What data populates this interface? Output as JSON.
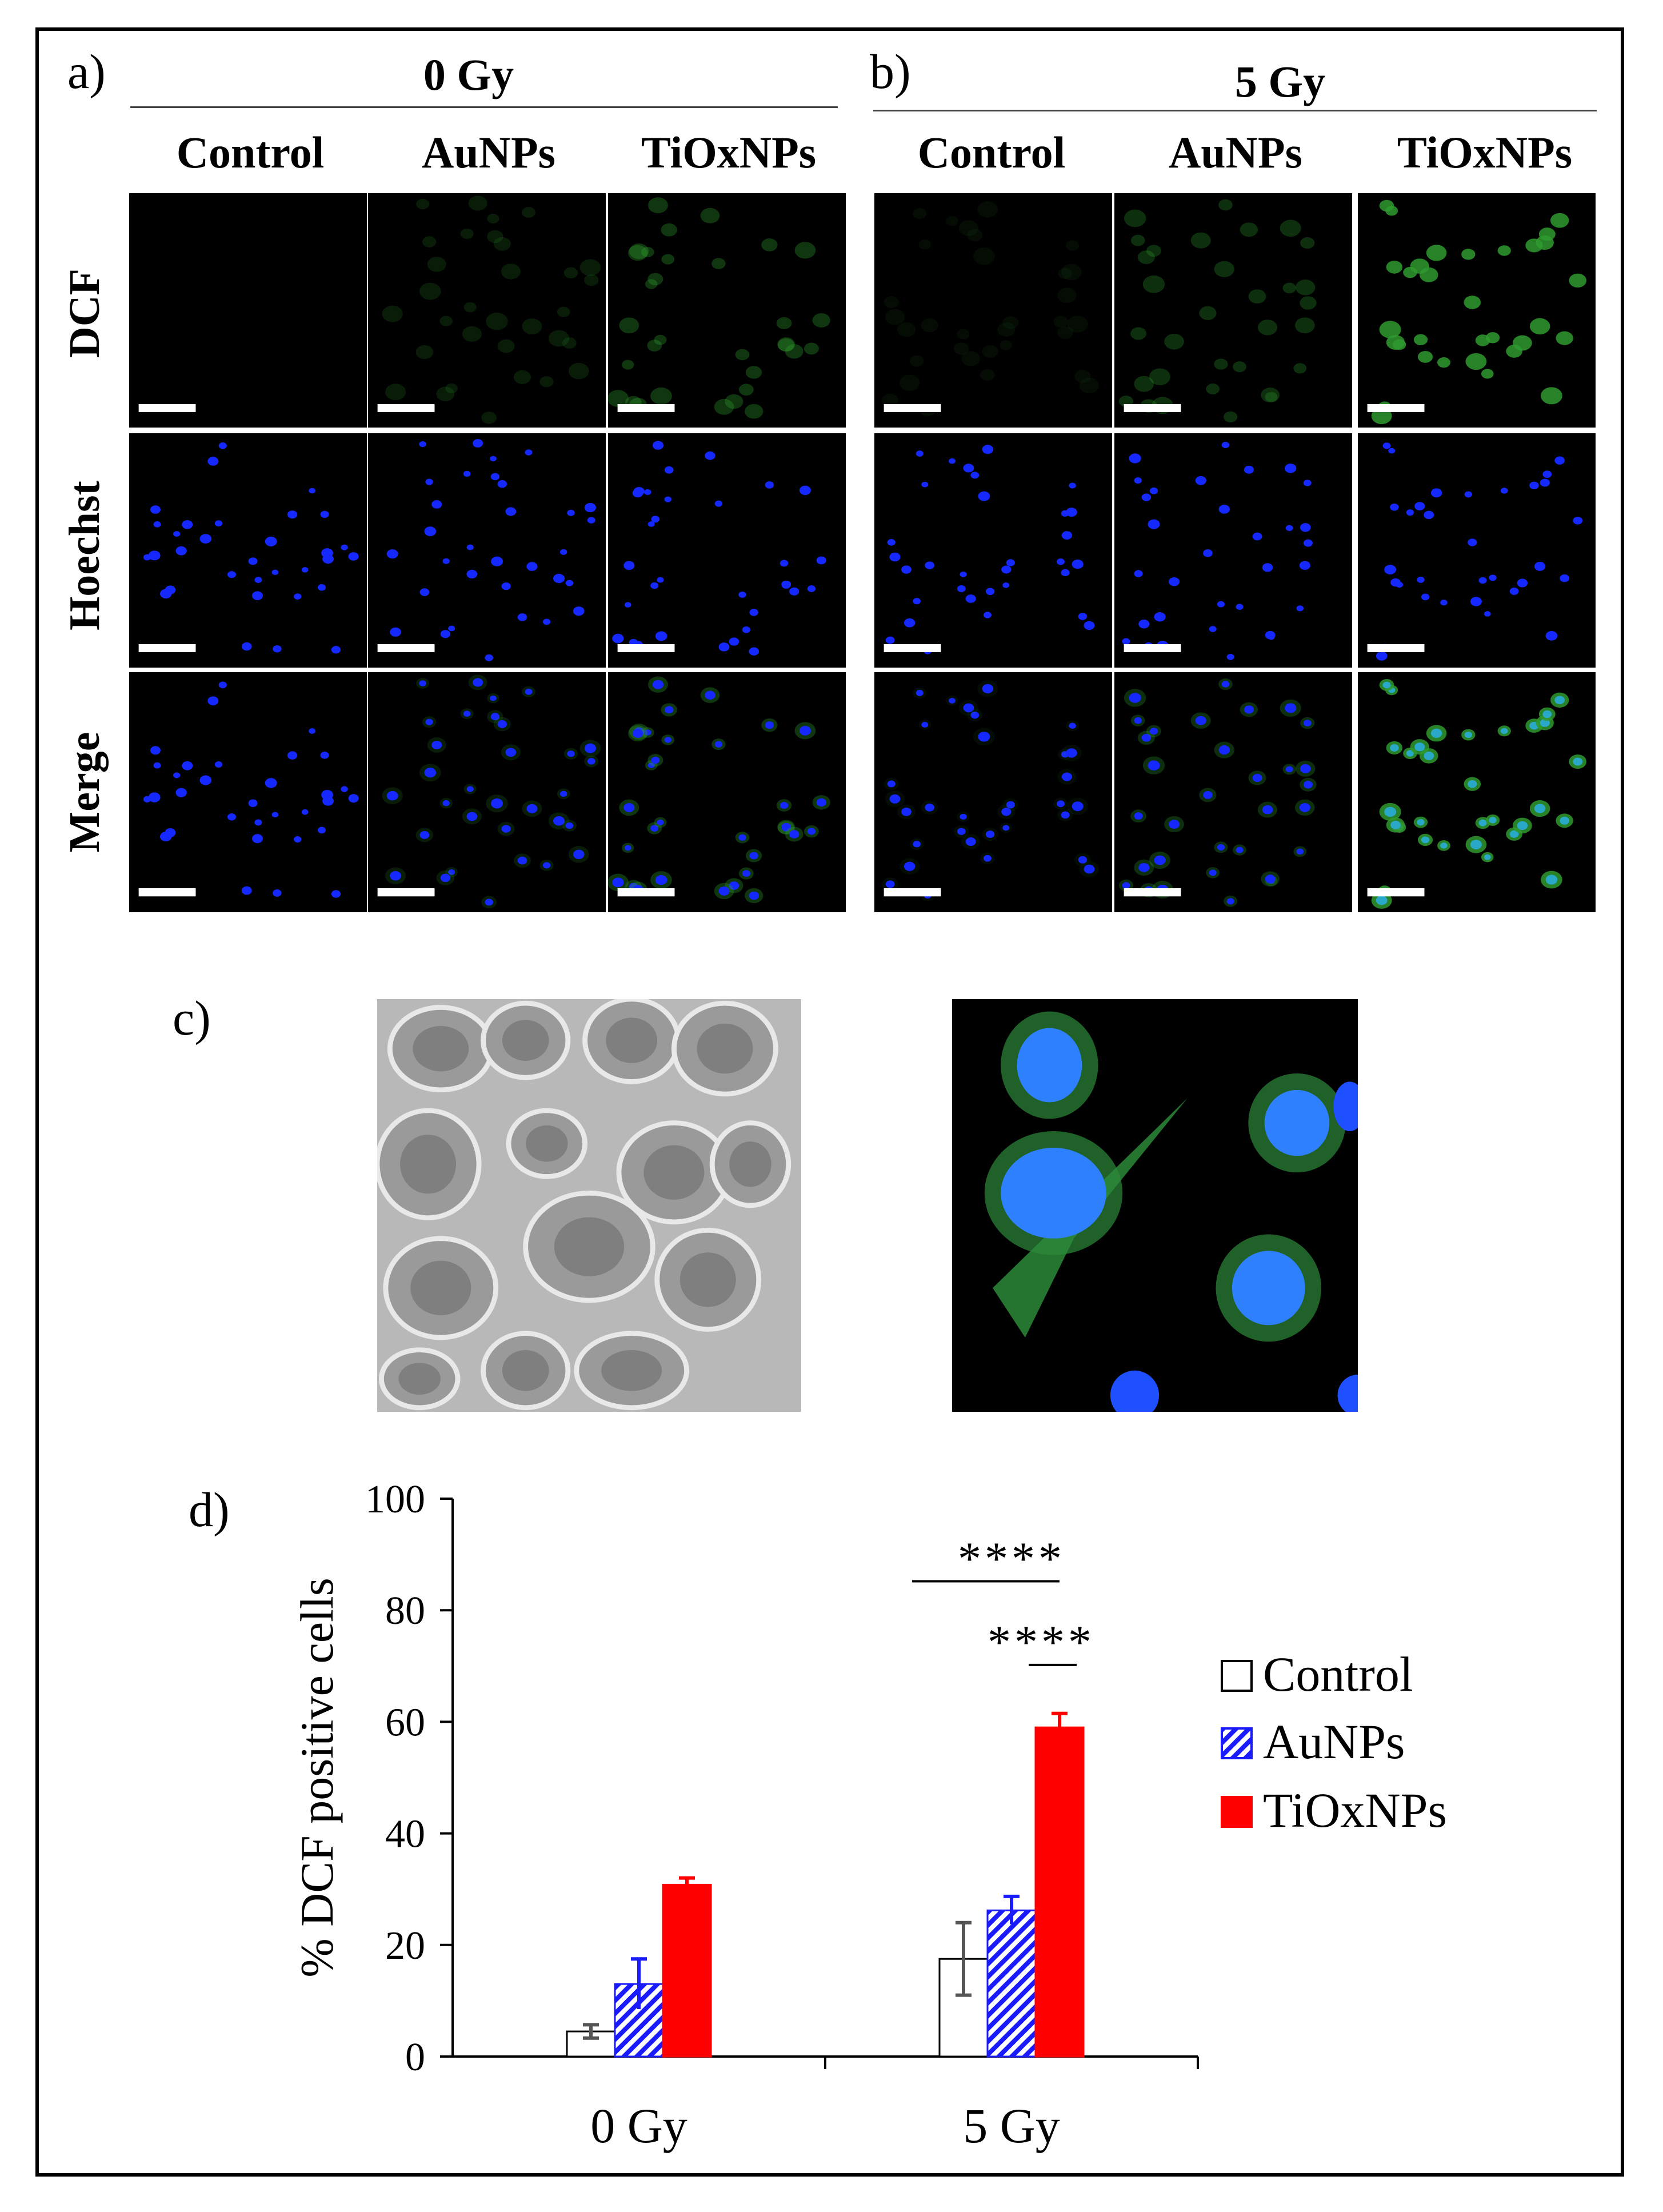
{
  "panel_labels": {
    "a": "a)",
    "b": "b)",
    "c": "c)",
    "d": "d)"
  },
  "dose_headers": [
    "0 Gy",
    "5 Gy"
  ],
  "column_headers": [
    "Control",
    "AuNPs",
    "TiOxNPs"
  ],
  "row_labels": [
    "DCF",
    "Hoechst",
    "Merge"
  ],
  "colors": {
    "control_fill": "#ffffff",
    "aunps": "#1a1aff",
    "tioxnps": "#ff0000",
    "nucleus_blue": "#1428ff",
    "dcf_green": "#2f9a2f",
    "error_control": "#555555"
  },
  "chart_data": {
    "type": "bar",
    "categories": [
      "0 Gy",
      "5 Gy"
    ],
    "series": [
      {
        "name": "Control",
        "values": [
          4.5,
          17.5
        ],
        "errors": [
          1.2,
          6.5
        ]
      },
      {
        "name": "AuNPs",
        "values": [
          13,
          26.2
        ],
        "errors": [
          4.5,
          2.5
        ]
      },
      {
        "name": "TiOxNPs",
        "values": [
          30.8,
          59
        ],
        "errors": [
          1.2,
          2.5
        ]
      }
    ],
    "ylabel": "% DCF positive cells",
    "ylim": [
      0,
      100
    ],
    "yticks": [
      "0",
      "20",
      "40",
      "60",
      "80",
      "100"
    ],
    "legend_position": "right",
    "significance": [
      {
        "label": "****",
        "between": "Control vs TiOxNPs",
        "category": "5 Gy"
      },
      {
        "label": "****",
        "between": "AuNPs vs TiOxNPs",
        "category": "5 Gy"
      }
    ]
  }
}
